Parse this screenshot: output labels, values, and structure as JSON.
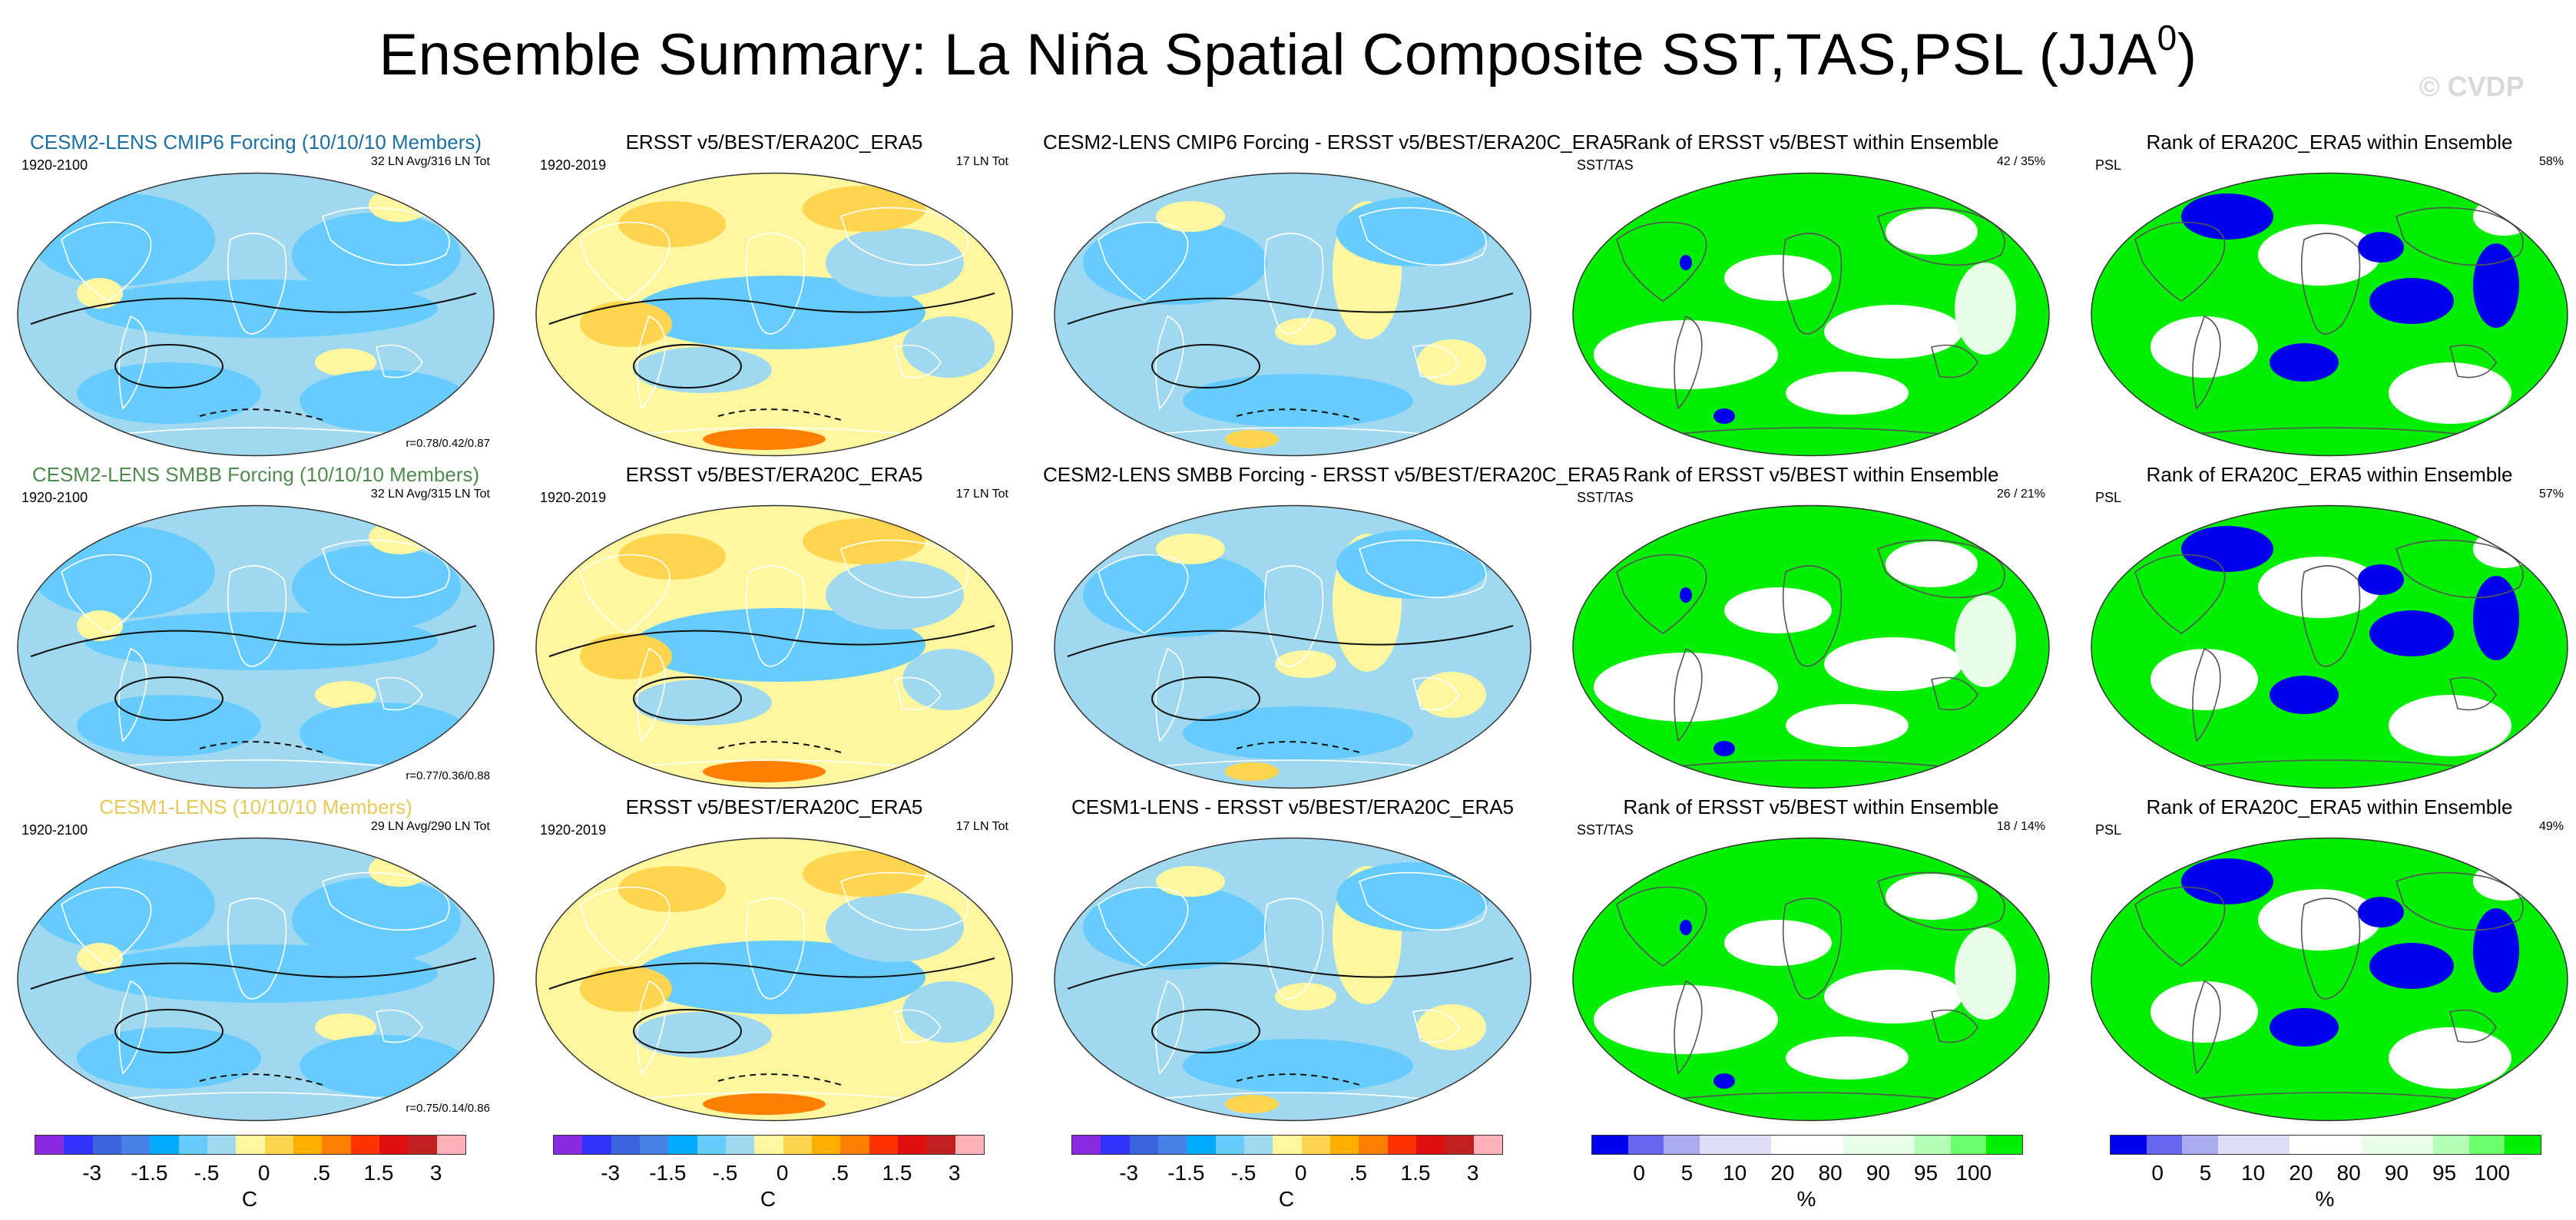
{
  "title": "Ensemble Summary: La Niña Spatial Composite SST,TAS,PSL (JJA",
  "title_superscript": "0",
  "title_close": ")",
  "watermark": "© CVDP",
  "chart_data": [
    {
      "type": "heatmap",
      "kind": "sst",
      "title": "CESM2-LENS CMIP6 Forcing (10/10/10 Members)",
      "title_color": "#1a6fa0",
      "period": "1920-2100",
      "stat": "32 LN Avg/316 LN Tot",
      "corr": "r=0.78/0.42/0.87"
    },
    {
      "type": "heatmap",
      "kind": "sst_obs",
      "title": "ERSST v5/BEST/ERA20C_ERA5",
      "title_color": "#000000",
      "period": "1920-2019",
      "stat": "17 LN Tot",
      "corr": ""
    },
    {
      "type": "heatmap",
      "kind": "sst_diff",
      "title": "CESM2-LENS CMIP6 Forcing - ERSST v5/BEST/ERA20C_ERA5",
      "title_color": "#000000",
      "period": "",
      "stat": "",
      "corr": ""
    },
    {
      "type": "heatmap",
      "kind": "rank",
      "title": "Rank of ERSST v5/BEST within Ensemble",
      "title_color": "#000000",
      "period": "SST/TAS",
      "stat": "42 / 35%",
      "corr": ""
    },
    {
      "type": "heatmap",
      "kind": "rank_psl",
      "title": "Rank of ERA20C_ERA5 within Ensemble",
      "title_color": "#000000",
      "period": "PSL",
      "stat": "58%",
      "corr": ""
    },
    {
      "type": "heatmap",
      "kind": "sst",
      "title": "CESM2-LENS SMBB Forcing (10/10/10 Members)",
      "title_color": "#4f8a4f",
      "period": "1920-2100",
      "stat": "32 LN Avg/315 LN Tot",
      "corr": "r=0.77/0.36/0.88"
    },
    {
      "type": "heatmap",
      "kind": "sst_obs",
      "title": "ERSST v5/BEST/ERA20C_ERA5",
      "title_color": "#000000",
      "period": "1920-2019",
      "stat": "17 LN Tot",
      "corr": ""
    },
    {
      "type": "heatmap",
      "kind": "sst_diff",
      "title": "CESM2-LENS SMBB Forcing - ERSST v5/BEST/ERA20C_ERA5",
      "title_color": "#000000",
      "period": "",
      "stat": "",
      "corr": ""
    },
    {
      "type": "heatmap",
      "kind": "rank",
      "title": "Rank of ERSST v5/BEST within Ensemble",
      "title_color": "#000000",
      "period": "SST/TAS",
      "stat": "26 / 21%",
      "corr": ""
    },
    {
      "type": "heatmap",
      "kind": "rank_psl",
      "title": "Rank of ERA20C_ERA5 within Ensemble",
      "title_color": "#000000",
      "period": "PSL",
      "stat": "57%",
      "corr": ""
    },
    {
      "type": "heatmap",
      "kind": "sst",
      "title": "CESM1-LENS (10/10/10 Members)",
      "title_color": "#e6c95a",
      "period": "1920-2100",
      "stat": "29 LN Avg/290 LN Tot",
      "corr": "r=0.75/0.14/0.86"
    },
    {
      "type": "heatmap",
      "kind": "sst_obs",
      "title": "ERSST v5/BEST/ERA20C_ERA5",
      "title_color": "#000000",
      "period": "1920-2019",
      "stat": "17 LN Tot",
      "corr": ""
    },
    {
      "type": "heatmap",
      "kind": "sst_diff",
      "title": "CESM1-LENS - ERSST v5/BEST/ERA20C_ERA5",
      "title_color": "#000000",
      "period": "",
      "stat": "",
      "corr": ""
    },
    {
      "type": "heatmap",
      "kind": "rank",
      "title": "Rank of ERSST v5/BEST within Ensemble",
      "title_color": "#000000",
      "period": "SST/TAS",
      "stat": "18 / 14%",
      "corr": ""
    },
    {
      "type": "heatmap",
      "kind": "rank_psl",
      "title": "Rank of ERA20C_ERA5 within Ensemble",
      "title_color": "#000000",
      "period": "PSL",
      "stat": "49%",
      "corr": ""
    }
  ],
  "colorbars": [
    {
      "unit": "C",
      "colors": [
        "#8a2be2",
        "#3232ff",
        "#3c64dc",
        "#4682e6",
        "#00aaff",
        "#66ccff",
        "#a0d8f0",
        "#fff7a0",
        "#ffd54f",
        "#ffae00",
        "#ff7f00",
        "#ff3300",
        "#e01010",
        "#c02020",
        "#ffb0b8"
      ],
      "ticks": [
        "-3",
        "-1.5",
        "-.5",
        "0",
        ".5",
        "1.5",
        "3"
      ]
    },
    {
      "unit": "C",
      "colors": [
        "#8a2be2",
        "#3232ff",
        "#3c64dc",
        "#4682e6",
        "#00aaff",
        "#66ccff",
        "#a0d8f0",
        "#fff7a0",
        "#ffd54f",
        "#ffae00",
        "#ff7f00",
        "#ff3300",
        "#e01010",
        "#c02020",
        "#ffb0b8"
      ],
      "ticks": [
        "-3",
        "-1.5",
        "-.5",
        "0",
        ".5",
        "1.5",
        "3"
      ]
    },
    {
      "unit": "C",
      "colors": [
        "#8a2be2",
        "#3232ff",
        "#3c64dc",
        "#4682e6",
        "#00aaff",
        "#66ccff",
        "#a0d8f0",
        "#fff7a0",
        "#ffd54f",
        "#ffae00",
        "#ff7f00",
        "#ff3300",
        "#e01010",
        "#c02020",
        "#ffb0b8"
      ],
      "ticks": [
        "-3",
        "-1.5",
        "-.5",
        "0",
        ".5",
        "1.5",
        "3"
      ]
    },
    {
      "unit": "%",
      "colors": [
        "#0000ee",
        "#6666ee",
        "#aaaaee",
        "#ddddf8",
        "#ddddf8",
        "#ffffff",
        "#ffffff",
        "#e6ffe6",
        "#e6ffe6",
        "#b4ffb4",
        "#6cff6c",
        "#00ee00"
      ],
      "ticks": [
        "0",
        "5",
        "10",
        "20",
        "80",
        "90",
        "95",
        "100"
      ]
    },
    {
      "unit": "%",
      "colors": [
        "#0000ee",
        "#6666ee",
        "#aaaaee",
        "#ddddf8",
        "#ddddf8",
        "#ffffff",
        "#ffffff",
        "#e6ffe6",
        "#e6ffe6",
        "#b4ffb4",
        "#6cff6c",
        "#00ee00"
      ],
      "ticks": [
        "0",
        "5",
        "10",
        "20",
        "80",
        "90",
        "95",
        "100"
      ]
    }
  ]
}
